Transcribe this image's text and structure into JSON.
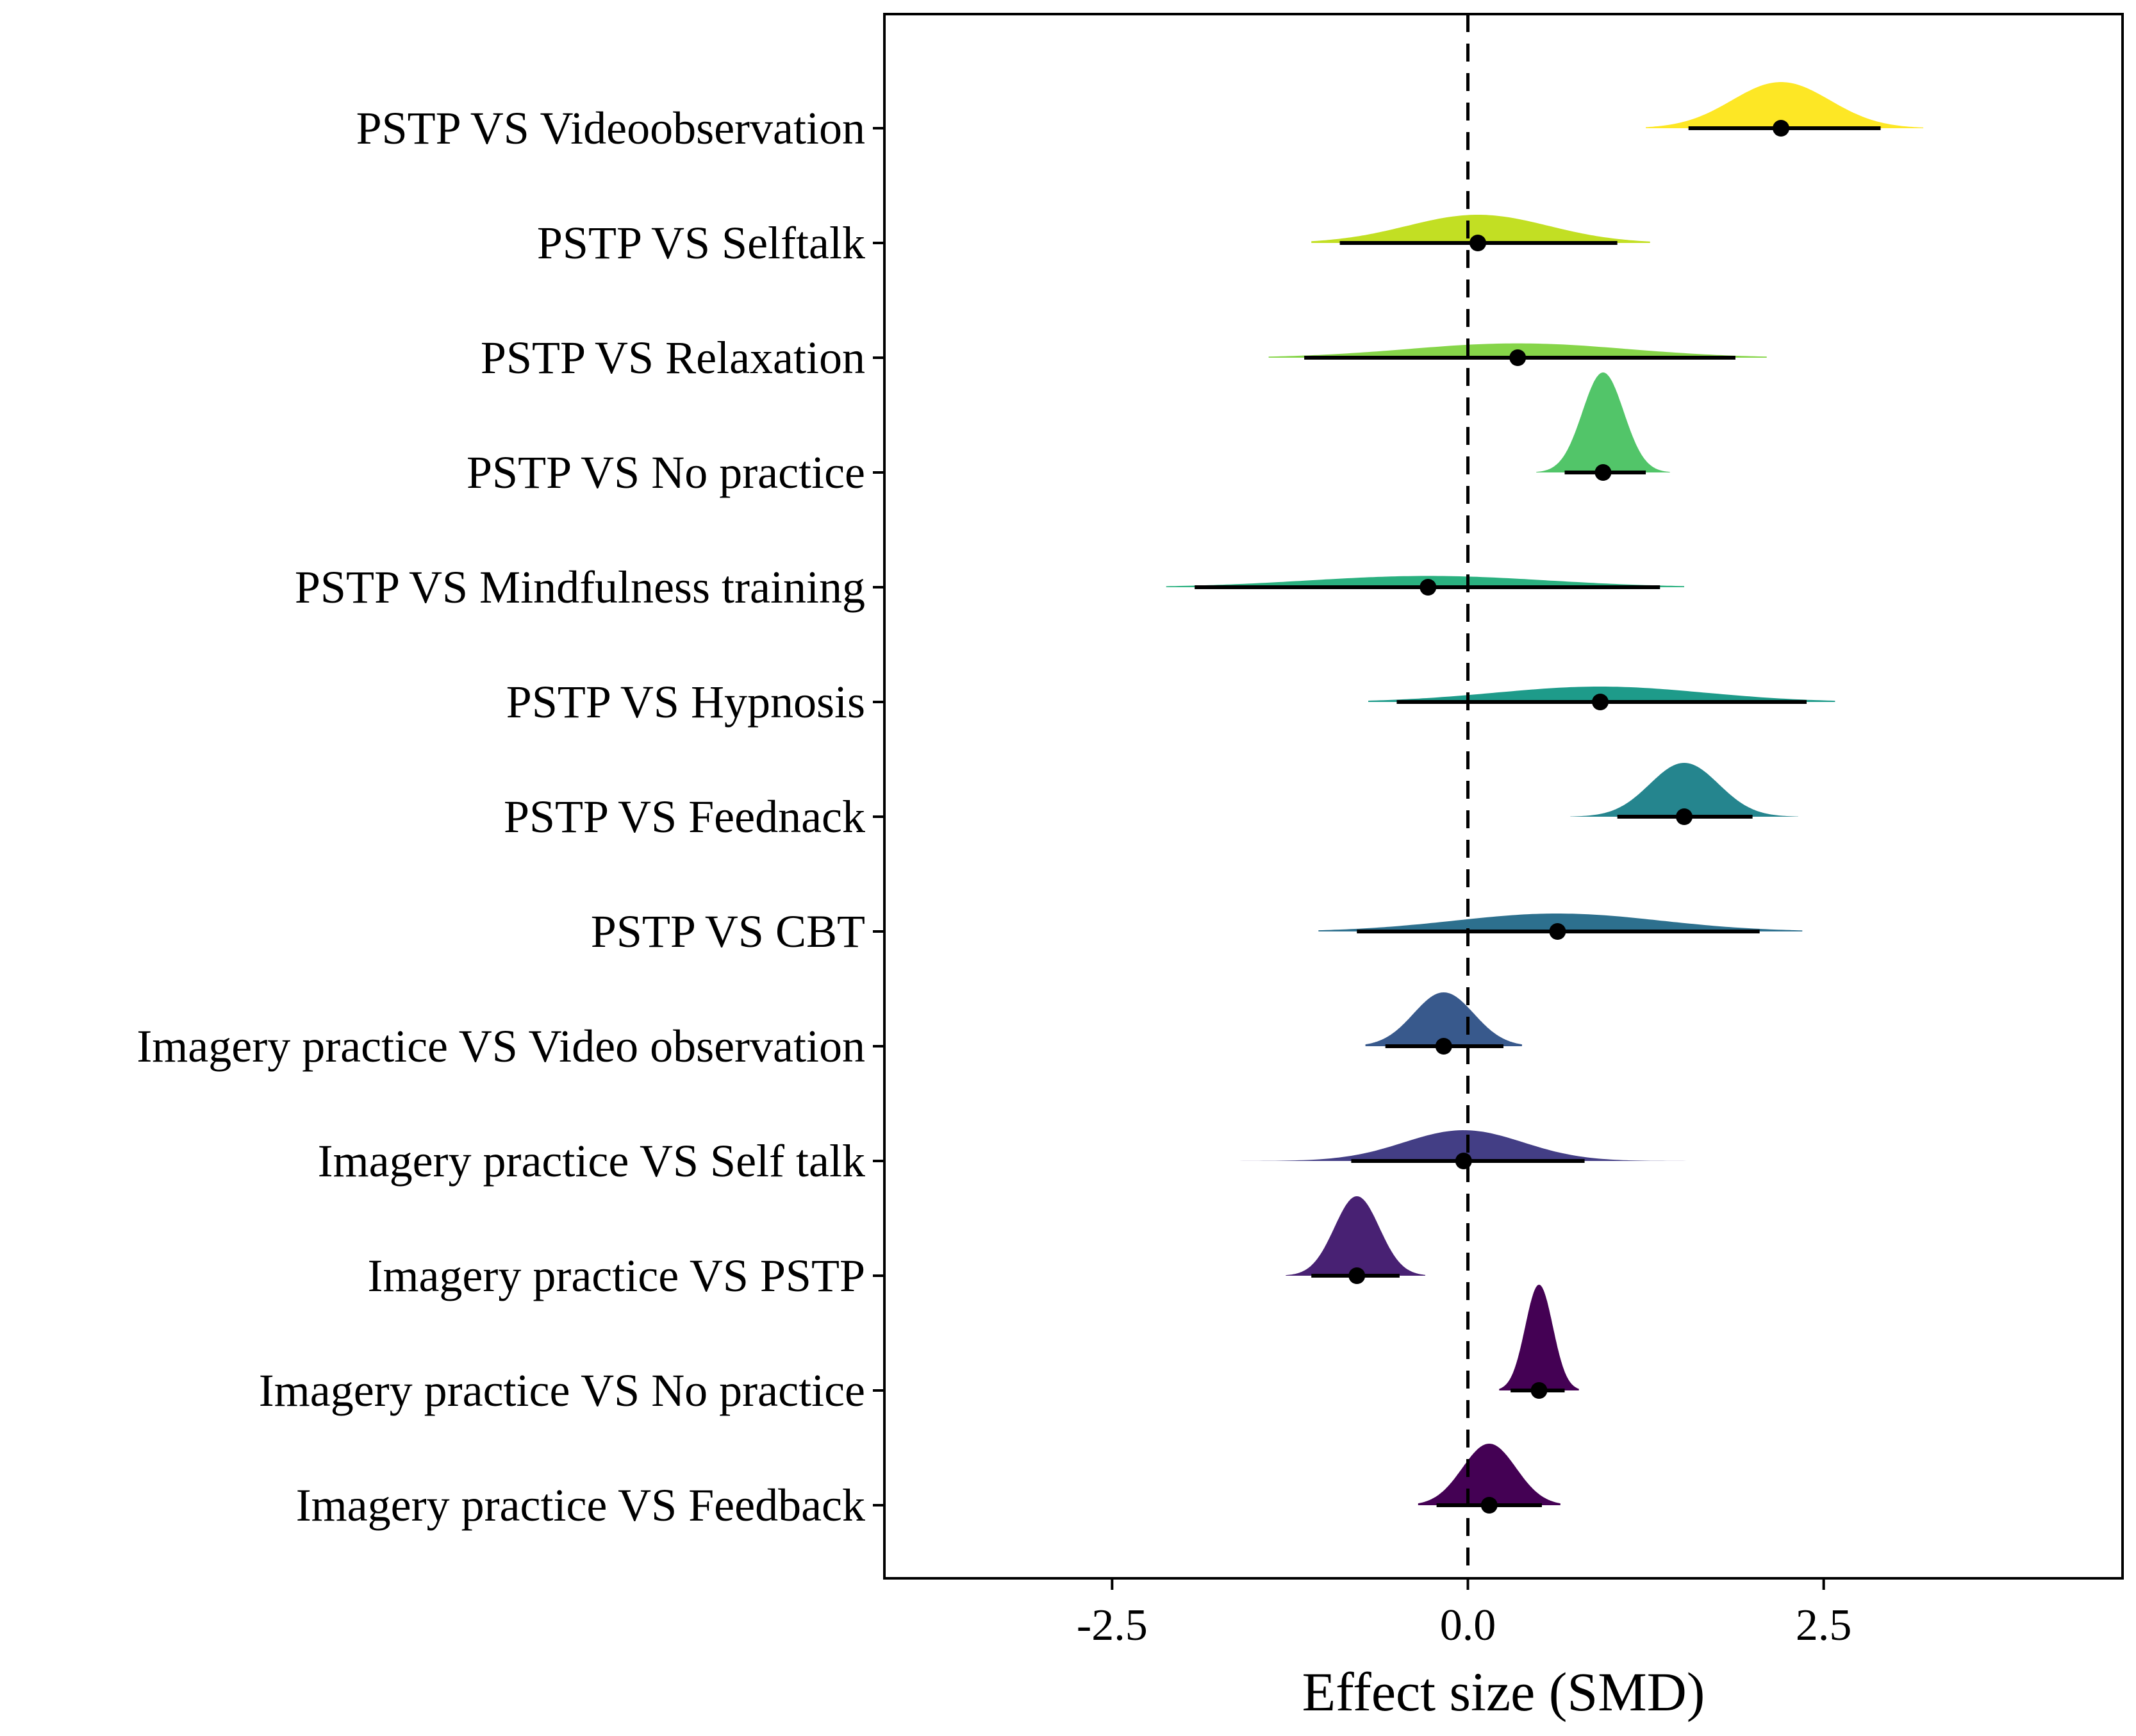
{
  "chart_data": {
    "type": "forest-density",
    "xlabel": "Effect size (SMD)",
    "xlim": [
      -4.1,
      4.6
    ],
    "xticks": [
      -2.5,
      0.0,
      2.5
    ],
    "xtick_labels": [
      "-2.5",
      "0.0",
      "2.5"
    ],
    "reference_line": 0,
    "rows": [
      {
        "label": "PSTP VS Videoobservation",
        "estimate": 2.2,
        "ci": [
          1.55,
          2.9
        ],
        "tail": [
          1.25,
          3.2
        ],
        "peak": 0.9,
        "color": "#FDE725"
      },
      {
        "label": "PSTP VS Selftalk",
        "estimate": 0.07,
        "ci": [
          -0.9,
          1.05
        ],
        "tail": [
          -1.1,
          1.28
        ],
        "peak": 0.55,
        "color": "#C2DF23"
      },
      {
        "label": "PSTP VS Relaxation",
        "estimate": 0.35,
        "ci": [
          -1.15,
          1.88
        ],
        "tail": [
          -1.4,
          2.1
        ],
        "peak": 0.28,
        "color": "#86D549"
      },
      {
        "label": "PSTP VS No practice",
        "estimate": 0.95,
        "ci": [
          0.68,
          1.25
        ],
        "tail": [
          0.48,
          1.42
        ],
        "peak": 1.95,
        "color": "#52C569"
      },
      {
        "label": "PSTP VS Mindfulness training",
        "estimate": -0.28,
        "ci": [
          -1.92,
          1.35
        ],
        "tail": [
          -2.12,
          1.52
        ],
        "peak": 0.22,
        "color": "#2AB07F"
      },
      {
        "label": "PSTP VS Hypnosis",
        "estimate": 0.93,
        "ci": [
          -0.5,
          2.38
        ],
        "tail": [
          -0.7,
          2.58
        ],
        "peak": 0.3,
        "color": "#1E9B8A"
      },
      {
        "label": "PSTP VS Feednack",
        "estimate": 1.52,
        "ci": [
          1.05,
          2.0
        ],
        "tail": [
          0.72,
          2.32
        ],
        "peak": 1.05,
        "color": "#25858E"
      },
      {
        "label": "PSTP VS CBT",
        "estimate": 0.63,
        "ci": [
          -0.78,
          2.05
        ],
        "tail": [
          -1.05,
          2.35
        ],
        "peak": 0.35,
        "color": "#2D708E"
      },
      {
        "label": "Imagery practice VS Video observation",
        "estimate": -0.17,
        "ci": [
          -0.58,
          0.25
        ],
        "tail": [
          -0.72,
          0.38
        ],
        "peak": 1.05,
        "color": "#38598C"
      },
      {
        "label": "Imagery practice VS Self talk",
        "estimate": -0.03,
        "ci": [
          -0.82,
          0.82
        ],
        "tail": [
          -1.72,
          1.65
        ],
        "peak": 0.6,
        "color": "#433E85"
      },
      {
        "label": "Imagery practice VS PSTP",
        "estimate": -0.78,
        "ci": [
          -1.1,
          -0.48
        ],
        "tail": [
          -1.28,
          -0.3
        ],
        "peak": 1.55,
        "color": "#482173"
      },
      {
        "label": "Imagery practice VS No practice",
        "estimate": 0.5,
        "ci": [
          0.3,
          0.68
        ],
        "tail": [
          0.22,
          0.78
        ],
        "peak": 2.5,
        "color": "#440154"
      },
      {
        "label": "Imagery practice VS Feedback",
        "estimate": 0.15,
        "ci": [
          -0.22,
          0.52
        ],
        "tail": [
          -0.35,
          0.65
        ],
        "peak": 1.2,
        "color": "#440154"
      }
    ]
  }
}
